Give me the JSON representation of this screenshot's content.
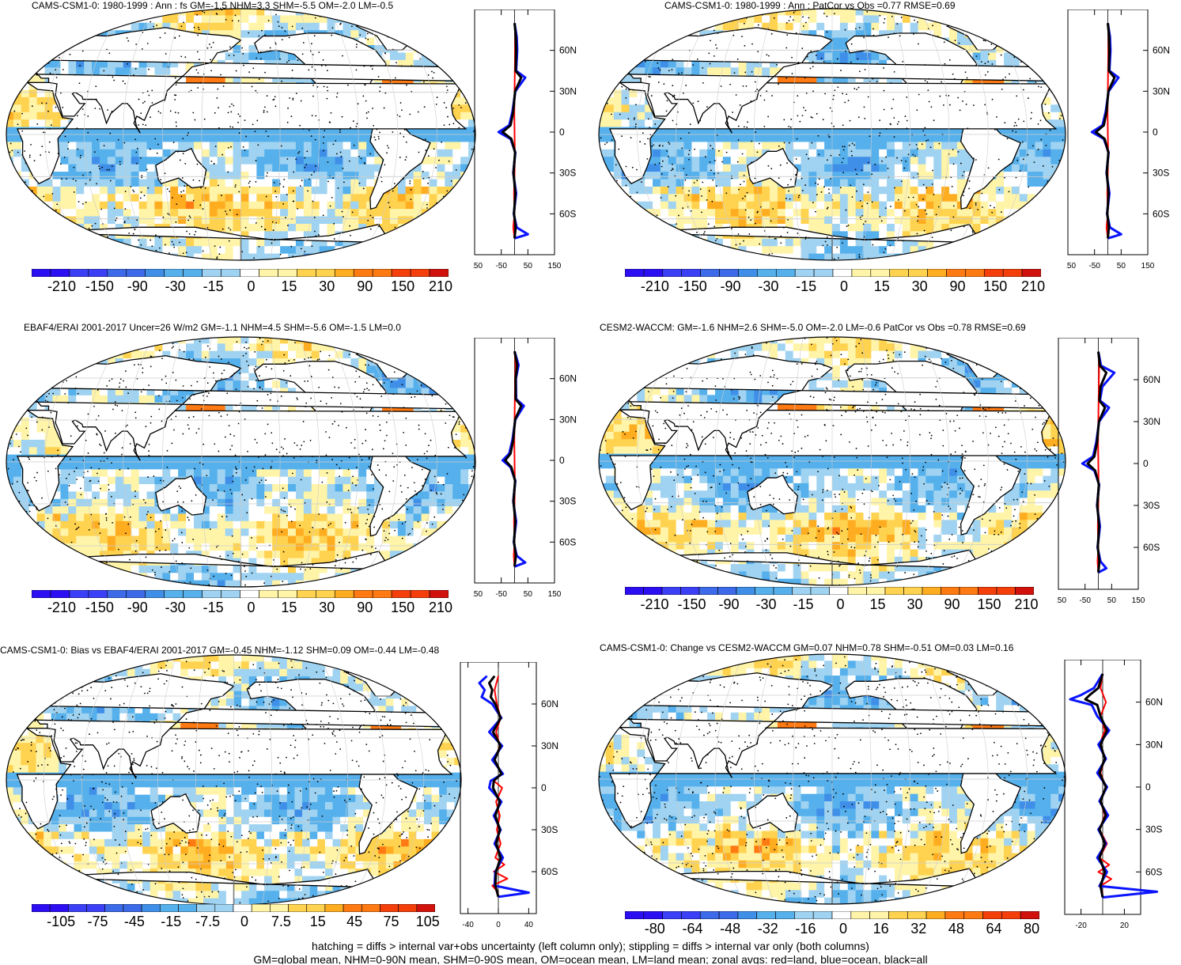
{
  "chart_data": [
    {
      "type": "heatmap",
      "title": "CAMS-CSM1-0: 1980-1999 : Ann : fs GM=-1.5 NHM=3.3 SHM=-5.5 OM=-2.0 LM=-0.5",
      "colorbar_ticks": [
        "-210",
        "-150",
        "-90",
        "-30",
        "-15",
        "0",
        "15",
        "30",
        "90",
        "150",
        "210"
      ],
      "lat_ticks": [
        "60N",
        "30N",
        "0",
        "30S",
        "60S"
      ],
      "zonal_xticks": [
        "-150",
        "-50",
        "50",
        "150"
      ],
      "zonal_units": "W m⁻²",
      "zonal_xlim": [
        -150,
        150
      ],
      "zonal_series": [
        {
          "color": "red",
          "lat": [
            80,
            70,
            60,
            45,
            30,
            15,
            0,
            -15,
            -30,
            -45,
            -60,
            -70,
            -78
          ],
          "values": [
            0,
            3,
            2,
            1,
            0,
            -1,
            0,
            1,
            0,
            -2,
            0,
            -5,
            0
          ]
        },
        {
          "color": "blue",
          "lat": [
            80,
            70,
            60,
            45,
            40,
            30,
            15,
            5,
            0,
            -5,
            -15,
            -30,
            -45,
            -60,
            -70,
            -75,
            -78
          ],
          "values": [
            0,
            8,
            10,
            6,
            40,
            3,
            -8,
            -20,
            -60,
            -15,
            3,
            -5,
            6,
            -3,
            8,
            50,
            0
          ]
        },
        {
          "color": "black",
          "lat": [
            80,
            70,
            60,
            45,
            40,
            30,
            15,
            5,
            0,
            -5,
            -15,
            -30,
            -45,
            -60,
            -70,
            -78
          ],
          "values": [
            0,
            5,
            6,
            4,
            25,
            2,
            -5,
            -15,
            -45,
            -12,
            2,
            -4,
            3,
            -2,
            4,
            0
          ]
        }
      ]
    },
    {
      "type": "heatmap",
      "title": "CAMS-CSM1-0: 1980-1999 : Ann : PatCor vs Obs =0.77 RMSE=0.69",
      "colorbar_ticks": [
        "-210",
        "-150",
        "-90",
        "-30",
        "-15",
        "0",
        "15",
        "30",
        "90",
        "150",
        "210"
      ],
      "lat_ticks": [
        "60N",
        "30N",
        "0",
        "30S",
        "60S"
      ],
      "zonal_xticks": [
        "-150",
        "-50",
        "50",
        "150"
      ],
      "zonal_units": "W m⁻²",
      "zonal_xlim": [
        -150,
        150
      ],
      "zonal_series": [
        {
          "color": "red",
          "lat": [
            80,
            70,
            60,
            45,
            30,
            15,
            0,
            -15,
            -30,
            -45,
            -60,
            -70,
            -78
          ],
          "values": [
            0,
            3,
            2,
            1,
            0,
            -1,
            0,
            1,
            0,
            -2,
            0,
            -5,
            0
          ]
        },
        {
          "color": "blue",
          "lat": [
            80,
            70,
            60,
            45,
            40,
            30,
            15,
            5,
            0,
            -5,
            -15,
            -30,
            -45,
            -60,
            -70,
            -75,
            -78
          ],
          "values": [
            0,
            8,
            10,
            6,
            40,
            3,
            -8,
            -20,
            -60,
            -15,
            3,
            -5,
            6,
            -3,
            8,
            50,
            0
          ]
        },
        {
          "color": "black",
          "lat": [
            80,
            70,
            60,
            45,
            40,
            30,
            15,
            5,
            0,
            -5,
            -15,
            -30,
            -45,
            -60,
            -70,
            -78
          ],
          "values": [
            0,
            5,
            6,
            4,
            25,
            2,
            -5,
            -15,
            -45,
            -12,
            2,
            -4,
            3,
            -2,
            4,
            0
          ]
        }
      ]
    },
    {
      "type": "heatmap",
      "title": "EBAF4/ERAI 2001-2017 Uncer=26 W/m2 GM=-1.1 NHM=4.5 SHM=-5.6 OM=-1.5 LM=0.0",
      "colorbar_ticks": [
        "-210",
        "-150",
        "-90",
        "-30",
        "-15",
        "0",
        "15",
        "30",
        "90",
        "150",
        "210"
      ],
      "lat_ticks": [
        "60N",
        "30N",
        "0",
        "30S",
        "60S"
      ],
      "zonal_xticks": [
        "-150",
        "-50",
        "50",
        "150"
      ],
      "zonal_units": "W m⁻²",
      "zonal_xlim": [
        -150,
        150
      ],
      "zonal_series": [
        {
          "color": "red",
          "lat": [
            80,
            70,
            60,
            45,
            30,
            15,
            0,
            -15,
            -30,
            -45,
            -60,
            -70,
            -78
          ],
          "values": [
            0,
            4,
            2,
            1,
            0,
            -1,
            0,
            1,
            0,
            -2,
            0,
            -3,
            0
          ]
        },
        {
          "color": "blue",
          "lat": [
            80,
            70,
            60,
            45,
            40,
            30,
            15,
            5,
            0,
            -5,
            -15,
            -30,
            -45,
            -60,
            -70,
            -75,
            -78
          ],
          "values": [
            0,
            15,
            5,
            6,
            35,
            3,
            -8,
            -20,
            -45,
            -15,
            3,
            -5,
            6,
            -3,
            8,
            40,
            0
          ]
        },
        {
          "color": "black",
          "lat": [
            80,
            70,
            60,
            45,
            40,
            30,
            15,
            5,
            0,
            -5,
            -15,
            -30,
            -45,
            -60,
            -70,
            -78
          ],
          "values": [
            0,
            10,
            4,
            4,
            25,
            2,
            -5,
            -15,
            -35,
            -12,
            2,
            -4,
            3,
            -2,
            5,
            0
          ]
        }
      ]
    },
    {
      "type": "heatmap",
      "title": "CESM2-WACCM: GM=-1.6 NHM=2.6 SHM=-5.0 OM=-2.0 LM=-0.6 PatCor vs Obs =0.78 RMSE=0.69",
      "colorbar_ticks": [
        "-210",
        "-150",
        "-90",
        "-30",
        "-15",
        "0",
        "15",
        "30",
        "90",
        "150",
        "210"
      ],
      "lat_ticks": [
        "60N",
        "30N",
        "0",
        "30S",
        "60S"
      ],
      "zonal_xticks": [
        "-150",
        "-50",
        "50",
        "150"
      ],
      "zonal_units": "W m⁻²",
      "zonal_xlim": [
        -150,
        150
      ],
      "zonal_series": [
        {
          "color": "red",
          "lat": [
            80,
            70,
            60,
            45,
            30,
            15,
            0,
            -15,
            -30,
            -45,
            -60,
            -70,
            -78
          ],
          "values": [
            0,
            3,
            2,
            1,
            0,
            -1,
            0,
            1,
            0,
            -2,
            0,
            -3,
            0
          ]
        },
        {
          "color": "blue",
          "lat": [
            80,
            70,
            65,
            55,
            45,
            40,
            30,
            15,
            5,
            0,
            -5,
            -15,
            -30,
            -45,
            -60,
            -70,
            -75,
            -78
          ],
          "values": [
            0,
            10,
            60,
            15,
            6,
            40,
            3,
            -8,
            -20,
            -60,
            -15,
            3,
            -5,
            6,
            -3,
            8,
            30,
            0
          ]
        },
        {
          "color": "black",
          "lat": [
            80,
            70,
            65,
            55,
            45,
            40,
            30,
            15,
            5,
            0,
            -5,
            -15,
            -30,
            -45,
            -60,
            -70,
            -78
          ],
          "values": [
            0,
            6,
            30,
            8,
            4,
            25,
            2,
            -5,
            -15,
            -40,
            -12,
            2,
            -4,
            3,
            -2,
            4,
            0
          ]
        }
      ]
    },
    {
      "type": "heatmap",
      "title": "CAMS-CSM1-0: Bias vs EBAF4/ERAI 2001-2017 GM=-0.45 NHM=-1.12 SHM=0.09 OM=-0.44 LM=-0.48",
      "colorbar_ticks": [
        "-105",
        "-75",
        "-45",
        "-15",
        "-7.5",
        "0",
        "7.5",
        "15",
        "45",
        "75",
        "105"
      ],
      "lat_ticks": [
        "60N",
        "30N",
        "0",
        "30S",
        "60S"
      ],
      "zonal_xticks": [
        "-40",
        "0",
        "40"
      ],
      "zonal_units": "W m⁻²",
      "zonal_xlim": [
        -50,
        50
      ],
      "zonal_series": [
        {
          "color": "red",
          "lat": [
            80,
            70,
            60,
            50,
            40,
            30,
            20,
            10,
            5,
            0,
            -10,
            -20,
            -30,
            -40,
            -50,
            -55,
            -60,
            -65,
            -70,
            -75
          ],
          "values": [
            0,
            -5,
            -2,
            3,
            -3,
            2,
            -5,
            4,
            -6,
            5,
            -3,
            2,
            -2,
            3,
            -4,
            8,
            -6,
            12,
            -8,
            0
          ]
        },
        {
          "color": "blue",
          "lat": [
            80,
            75,
            70,
            65,
            60,
            50,
            40,
            30,
            20,
            10,
            5,
            0,
            -10,
            -20,
            -30,
            -40,
            -50,
            -60,
            -70,
            -75,
            -78
          ],
          "values": [
            -15,
            -25,
            -18,
            -22,
            -8,
            4,
            -12,
            5,
            -8,
            6,
            -10,
            -12,
            4,
            -6,
            3,
            -5,
            6,
            -4,
            -5,
            40,
            0
          ]
        },
        {
          "color": "black",
          "lat": [
            80,
            75,
            70,
            65,
            60,
            50,
            40,
            30,
            20,
            10,
            5,
            0,
            -10,
            -20,
            -30,
            -40,
            -50,
            -60,
            -70,
            -78
          ],
          "values": [
            -5,
            -12,
            -8,
            -10,
            -4,
            3,
            -7,
            3,
            -5,
            4,
            -6,
            -7,
            2,
            -4,
            2,
            -3,
            3,
            -3,
            -4,
            0
          ]
        }
      ]
    },
    {
      "type": "heatmap",
      "title": "CAMS-CSM1-0: Change vs CESM2-WACCM GM=0.07 NHM=0.78 SHM=-0.51 OM=0.03 LM=0.16",
      "colorbar_ticks": [
        "-80",
        "-64",
        "-48",
        "-32",
        "-16",
        "0",
        "16",
        "32",
        "48",
        "64",
        "80"
      ],
      "lat_ticks": [
        "60N",
        "30N",
        "0",
        "30S",
        "60S"
      ],
      "zonal_xticks": [
        "-20",
        "20"
      ],
      "zonal_units": "W m⁻²",
      "zonal_xlim": [
        -35,
        35
      ],
      "zonal_series": [
        {
          "color": "red",
          "lat": [
            80,
            70,
            60,
            50,
            40,
            30,
            20,
            10,
            0,
            -10,
            -20,
            -30,
            -40,
            -50,
            -55,
            -60,
            -65,
            -70,
            -75
          ],
          "values": [
            0,
            -2,
            3,
            -2,
            2,
            -3,
            2,
            -2,
            3,
            -2,
            2,
            -3,
            4,
            -3,
            6,
            -4,
            8,
            -2,
            0
          ]
        },
        {
          "color": "blue",
          "lat": [
            80,
            70,
            65,
            62,
            58,
            50,
            40,
            30,
            20,
            10,
            0,
            -10,
            -20,
            -30,
            -40,
            -50,
            -60,
            -70,
            -74,
            -78
          ],
          "values": [
            0,
            -8,
            -20,
            -30,
            -10,
            -5,
            6,
            -4,
            3,
            -5,
            4,
            -3,
            5,
            -4,
            3,
            -5,
            4,
            -3,
            50,
            0
          ]
        },
        {
          "color": "black",
          "lat": [
            80,
            70,
            65,
            62,
            58,
            50,
            40,
            30,
            20,
            10,
            0,
            -10,
            -20,
            -30,
            -40,
            -50,
            -60,
            -70,
            -78
          ],
          "values": [
            0,
            -4,
            -12,
            -16,
            -5,
            -2,
            4,
            -2,
            2,
            -3,
            3,
            -2,
            3,
            -3,
            2,
            -3,
            2,
            -2,
            0
          ]
        }
      ]
    }
  ],
  "colorbar_colors": [
    "#2b0ef2",
    "#3b3ff5",
    "#3c6ae8",
    "#3f8fe8",
    "#55b0ec",
    "#9fd3f1",
    "#ffffff",
    "#fff4a8",
    "#ffd24f",
    "#ffad20",
    "#ff7a12",
    "#f43f0b",
    "#d0110c"
  ],
  "map_colors": {
    "land": "#ffffff",
    "neutral": "#ffffff",
    "warm": [
      "#fff4a8",
      "#ffd24f",
      "#ffad20",
      "#ff7a12",
      "#f43f0b"
    ],
    "cool": [
      "#9fd3f1",
      "#55b0ec",
      "#3f8fe8",
      "#3c6ae8",
      "#2b0ef2"
    ]
  },
  "footer": {
    "line1": "hatching = diffs > internal var+obs uncertainty (left column only); stippling = diffs > internal var only (both columns)",
    "line2": "GM=global mean, NHM=0-90N mean, SHM=0-90S mean, OM=ocean mean, LM=land mean; zonal avgs: red=land, blue=ocean, black=all"
  }
}
